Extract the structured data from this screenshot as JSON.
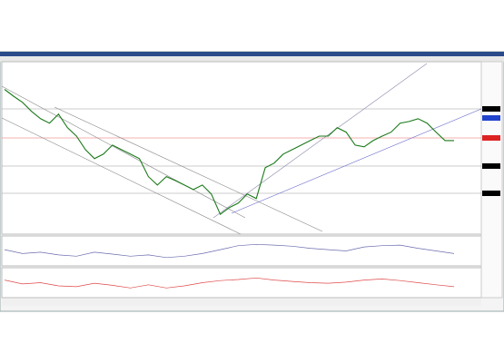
{
  "chart_data": [
    {
      "type": "line",
      "color": "#1a7a1a",
      "values": [
        1.154,
        1.142,
        1.131,
        1.115,
        1.102,
        1.094,
        1.11,
        1.086,
        1.071,
        1.047,
        1.031,
        1.039,
        1.055,
        1.047,
        1.039,
        1.031,
        0.999,
        0.984,
        0.999,
        0.992,
        0.984,
        0.976,
        0.984,
        0.968,
        0.932,
        0.944,
        0.952,
        0.968,
        0.96,
        1.015,
        1.023,
        1.039,
        1.047,
        1.055,
        1.063,
        1.071,
        1.071,
        1.086,
        1.078,
        1.055,
        1.052,
        1.063,
        1.071,
        1.078,
        1.094,
        1.097,
        1.102,
        1.094,
        1.078,
        1.063,
        1.063
      ],
      "ylim": [
        0.9,
        1.2
      ]
    },
    {
      "type": "line",
      "color": "#6b6bb0",
      "values": [
        55,
        40,
        45,
        35,
        30,
        45,
        38,
        30,
        35,
        25,
        30,
        40,
        55,
        70,
        75,
        72,
        68,
        60,
        55,
        50,
        65,
        70,
        72,
        60,
        50,
        40
      ],
      "ylim": [
        0,
        100
      ]
    },
    {
      "type": "line",
      "color": "#e04848",
      "values": [
        60,
        45,
        50,
        38,
        35,
        48,
        40,
        30,
        42,
        30,
        38,
        50,
        58,
        62,
        68,
        60,
        55,
        50,
        48,
        52,
        60,
        64,
        58,
        50,
        42,
        35
      ],
      "ylim": [
        0,
        100
      ]
    }
  ]
}
